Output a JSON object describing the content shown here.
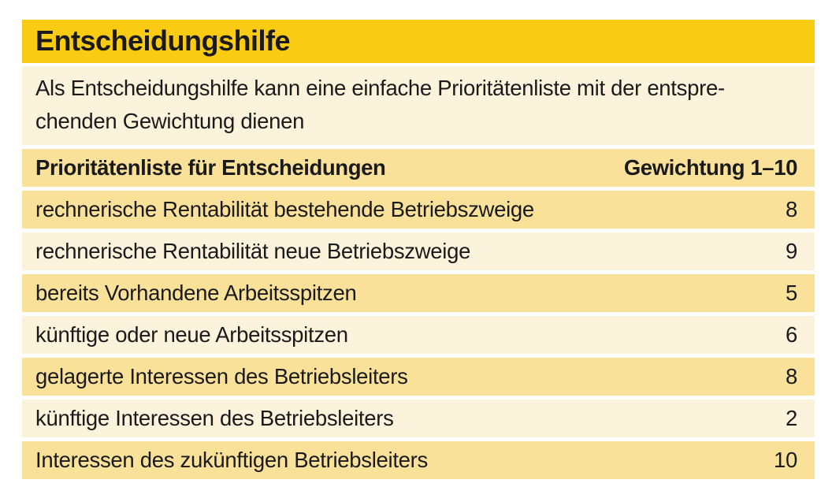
{
  "title": "Entscheidungshilfe",
  "intro": "Als Entscheidungshilfe kann eine einfache Prioritätenliste mit der entspre-\nchenden Gewichtung dienen",
  "table": {
    "header": {
      "label": "Prioritätenliste für Entscheidungen",
      "weight_label": "Gewichtung 1–10"
    },
    "rows": [
      {
        "label": "rechnerische Rentabilität bestehende Betriebszweige",
        "weight": "8"
      },
      {
        "label": "rechnerische Rentabilität neue Betriebszweige",
        "weight": "9"
      },
      {
        "label": "bereits Vorhandene Arbeitsspitzen",
        "weight": "5"
      },
      {
        "label": "künftige oder neue Arbeitsspitzen",
        "weight": "6"
      },
      {
        "label": "gelagerte Interessen des Betriebsleiters",
        "weight": "8"
      },
      {
        "label": "künftige Interessen des Betriebsleiters",
        "weight": "2"
      },
      {
        "label": "Interessen des zukünftigen Betriebsleiters",
        "weight": "10"
      }
    ]
  },
  "colors": {
    "title_bg": "#F9CB12",
    "row_medium": "#FAE199",
    "row_light": "#FCF3DC",
    "text": "#1A1A1A",
    "page_bg": "#FFFFFF"
  }
}
